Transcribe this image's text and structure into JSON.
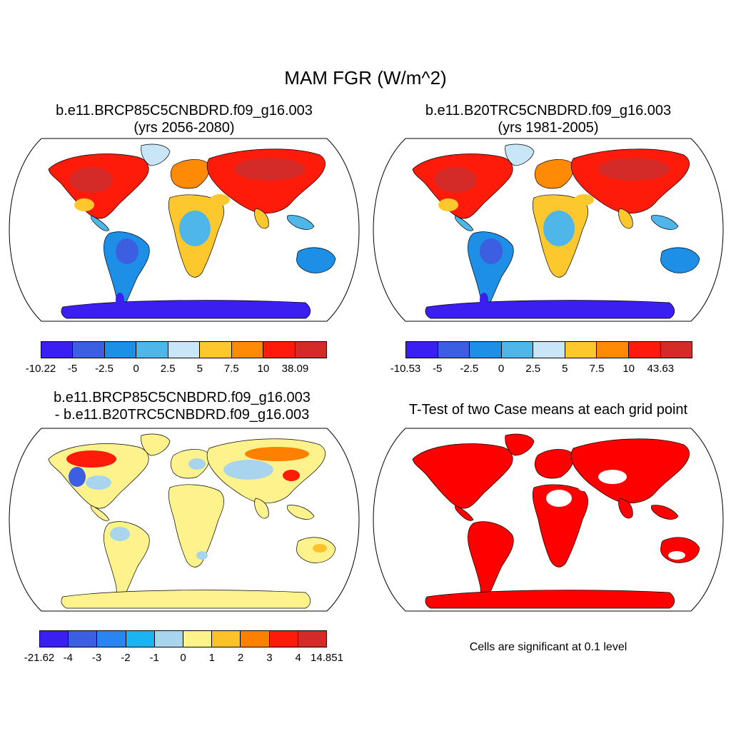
{
  "figure_title": "MAM FGR (W/m^2)",
  "panels": [
    {
      "title_line1": "b.e11.BRCP85C5CNBDRD.f09_g16.003",
      "title_line2": "(yrs 2056-2080)",
      "colorbar": {
        "colors": [
          "#3b1ff0",
          "#3c5ee0",
          "#1e8fe6",
          "#4fb6ea",
          "#c8e6f8",
          "#fdc82d",
          "#fe8a06",
          "#fe1b0a",
          "#d52b28"
        ],
        "labels": [
          "-10.22",
          "-5",
          "-2.5",
          "0",
          "2.5",
          "5",
          "7.5",
          "10",
          "38.09"
        ]
      }
    },
    {
      "title_line1": "b.e11.B20TRC5CNBDRD.f09_g16.003",
      "title_line2": "(yrs 1981-2005)",
      "colorbar": {
        "colors": [
          "#3b1ff0",
          "#3c5ee0",
          "#1e8fe6",
          "#4fb6ea",
          "#c8e6f8",
          "#fdc82d",
          "#fe8a06",
          "#fe1b0a",
          "#d52b28"
        ],
        "labels": [
          "-10.53",
          "-5",
          "-2.5",
          "0",
          "2.5",
          "5",
          "7.5",
          "10",
          "43.63"
        ]
      }
    },
    {
      "title_line1": "b.e11.BRCP85C5CNBDRD.f09_g16.003",
      "title_line2": "- b.e11.B20TRC5CNBDRD.f09_g16.003",
      "colorbar": {
        "colors": [
          "#3b1ff0",
          "#3c5ee0",
          "#2a85f0",
          "#1ab4f2",
          "#a8d4ee",
          "#fdf28c",
          "#fdc12a",
          "#fe8000",
          "#fe1b0a",
          "#d52b28"
        ],
        "labels": [
          "-21.62",
          "-4",
          "-3",
          "-2",
          "-1",
          "0",
          "1",
          "2",
          "3",
          "4",
          "14.851"
        ]
      }
    },
    {
      "title_line1": "T-Test of two Case means at each grid point",
      "significance_color": "#ff0000",
      "note": "Cells are significant at 0.1 level"
    }
  ]
}
